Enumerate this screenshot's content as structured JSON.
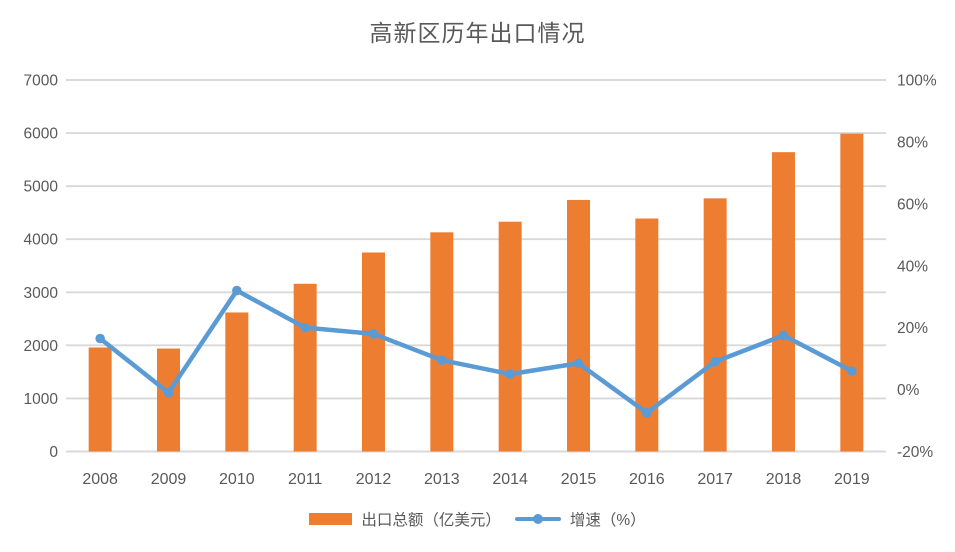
{
  "title": "高新区历年出口情况",
  "colors": {
    "bar": "#ED7D31",
    "line": "#5B9BD5",
    "grid": "#D9D9D9",
    "text": "#595959",
    "background": "#FFFFFF"
  },
  "legend": {
    "bar_label": "出口总额（亿美元）",
    "line_label": "增速（%）"
  },
  "chart_data": {
    "type": "combo",
    "title": "高新区历年出口情况",
    "categories": [
      "2008",
      "2009",
      "2010",
      "2011",
      "2012",
      "2013",
      "2014",
      "2015",
      "2016",
      "2017",
      "2018",
      "2019"
    ],
    "series": [
      {
        "name": "出口总额（亿美元）",
        "type": "bar",
        "axis": "left",
        "color": "#ED7D31",
        "values": [
          1960,
          1940,
          2620,
          3160,
          3750,
          4130,
          4330,
          4740,
          4390,
          4770,
          5640,
          5990
        ]
      },
      {
        "name": "增速（%）",
        "type": "line",
        "axis": "right",
        "color": "#5B9BD5",
        "values": [
          16.5,
          -1,
          32,
          20,
          18,
          9.5,
          5,
          8.5,
          -7.5,
          9,
          17.5,
          6
        ]
      }
    ],
    "left_axis": {
      "min": 0,
      "max": 7000,
      "step": 1000,
      "tick_labels": [
        "0",
        "1000",
        "2000",
        "3000",
        "4000",
        "5000",
        "6000",
        "7000"
      ]
    },
    "right_axis": {
      "min": -20,
      "max": 100,
      "step": 20,
      "tick_labels": [
        "-20%",
        "0%",
        "20%",
        "40%",
        "60%",
        "80%",
        "100%"
      ]
    },
    "grid": "horizontal",
    "legend_position": "bottom"
  }
}
